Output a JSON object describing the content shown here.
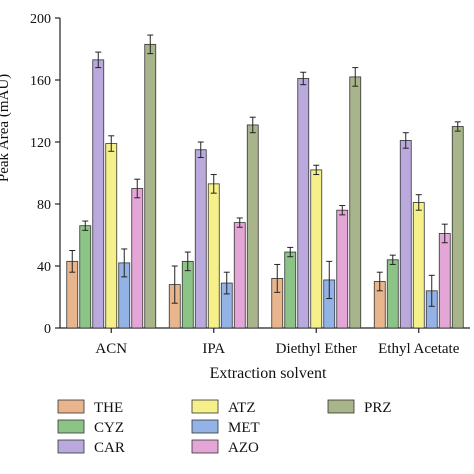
{
  "chart_data": {
    "type": "bar",
    "title": "",
    "xlabel": "Extraction solvent",
    "ylabel": "Peak Area (mAU)",
    "ylim": [
      0,
      200
    ],
    "yticks": [
      0,
      40,
      80,
      120,
      160,
      200
    ],
    "grid": false,
    "legend_position": "bottom",
    "categories": [
      "ACN",
      "IPA",
      "Diethyl Ether",
      "Ethyl Acetate"
    ],
    "series": [
      {
        "name": "THE",
        "color": "#e8b58d",
        "values": [
          43,
          28,
          32,
          30
        ],
        "errors": [
          7,
          12,
          9,
          6
        ]
      },
      {
        "name": "CYZ",
        "color": "#8cc488",
        "values": [
          66,
          43,
          49,
          44
        ],
        "errors": [
          3,
          6,
          3,
          3
        ]
      },
      {
        "name": "CAR",
        "color": "#b9a9dc",
        "values": [
          173,
          115,
          161,
          121
        ],
        "errors": [
          5,
          5,
          4,
          5
        ]
      },
      {
        "name": "ATZ",
        "color": "#f6f08a",
        "values": [
          119,
          93,
          102,
          81
        ],
        "errors": [
          5,
          6,
          3,
          5
        ]
      },
      {
        "name": "MET",
        "color": "#93b3e6",
        "values": [
          42,
          29,
          31,
          24
        ],
        "errors": [
          9,
          7,
          12,
          10
        ]
      },
      {
        "name": "AZO",
        "color": "#e3a6d6",
        "values": [
          90,
          68,
          76,
          61
        ],
        "errors": [
          6,
          3,
          3,
          6
        ]
      },
      {
        "name": "PRZ",
        "color": "#a8b58a",
        "values": [
          183,
          131,
          162,
          130
        ],
        "errors": [
          6,
          5,
          6,
          3
        ]
      }
    ]
  }
}
